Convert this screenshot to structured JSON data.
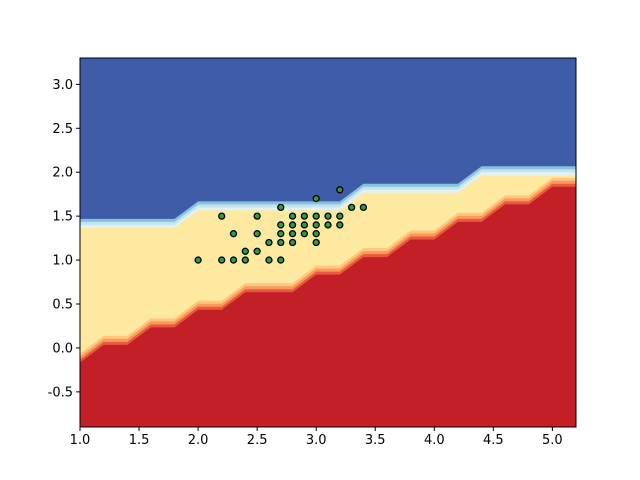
{
  "chart_data": {
    "type": "scatter",
    "background": "decision_regions_contour",
    "xlim": [
      1.0,
      5.2
    ],
    "ylim": [
      -0.9,
      3.3
    ],
    "x_ticks": [
      "1.0",
      "1.5",
      "2.0",
      "2.5",
      "3.0",
      "3.5",
      "4.0",
      "4.5",
      "5.0"
    ],
    "y_ticks": [
      "-0.5",
      "0.0",
      "0.5",
      "1.0",
      "1.5",
      "2.0",
      "2.5",
      "3.0"
    ],
    "colors": {
      "upper_region": "#3e5ca7",
      "middle_region": "#fde99f",
      "lower_region": "#c31f27",
      "upper_transition": [
        "#87c2dd",
        "#c4e3ef",
        "#e2f2f4"
      ],
      "lower_transition": [
        "#fec67e",
        "#f99a59",
        "#e9593f"
      ],
      "point_fill": "#2e9d3a",
      "point_edge": "#000000"
    },
    "upper_boundary": [
      [
        1.0,
        1.4
      ],
      [
        1.8,
        1.4
      ],
      [
        2.0,
        1.6
      ],
      [
        3.2,
        1.6
      ],
      [
        3.4,
        1.8
      ],
      [
        4.2,
        1.8
      ],
      [
        4.4,
        2.0
      ],
      [
        5.2,
        2.0
      ]
    ],
    "lower_boundary": [
      [
        1.0,
        -0.2
      ],
      [
        1.2,
        0.0
      ],
      [
        1.4,
        0.0
      ],
      [
        1.6,
        0.2
      ],
      [
        1.8,
        0.2
      ],
      [
        2.0,
        0.4
      ],
      [
        2.2,
        0.4
      ],
      [
        2.4,
        0.6
      ],
      [
        2.8,
        0.6
      ],
      [
        3.0,
        0.8
      ],
      [
        3.2,
        0.8
      ],
      [
        3.4,
        1.0
      ],
      [
        3.6,
        1.0
      ],
      [
        3.8,
        1.2
      ],
      [
        4.0,
        1.2
      ],
      [
        4.2,
        1.4
      ],
      [
        4.4,
        1.4
      ],
      [
        4.6,
        1.6
      ],
      [
        4.8,
        1.6
      ],
      [
        5.0,
        1.8
      ],
      [
        5.2,
        1.8
      ]
    ],
    "points": [
      [
        2.0,
        1.0
      ],
      [
        2.2,
        1.0
      ],
      [
        2.2,
        1.5
      ],
      [
        2.3,
        1.0
      ],
      [
        2.3,
        1.3
      ],
      [
        2.4,
        1.0
      ],
      [
        2.4,
        1.1
      ],
      [
        2.5,
        1.1
      ],
      [
        2.5,
        1.3
      ],
      [
        2.5,
        1.5
      ],
      [
        2.6,
        1.0
      ],
      [
        2.6,
        1.2
      ],
      [
        2.7,
        1.0
      ],
      [
        2.7,
        1.2
      ],
      [
        2.7,
        1.3
      ],
      [
        2.7,
        1.4
      ],
      [
        2.7,
        1.6
      ],
      [
        2.8,
        1.2
      ],
      [
        2.8,
        1.3
      ],
      [
        2.8,
        1.4
      ],
      [
        2.8,
        1.5
      ],
      [
        2.9,
        1.3
      ],
      [
        2.9,
        1.4
      ],
      [
        2.9,
        1.5
      ],
      [
        3.0,
        1.2
      ],
      [
        3.0,
        1.3
      ],
      [
        3.0,
        1.4
      ],
      [
        3.0,
        1.5
      ],
      [
        3.0,
        1.7
      ],
      [
        3.1,
        1.4
      ],
      [
        3.1,
        1.5
      ],
      [
        3.2,
        1.4
      ],
      [
        3.2,
        1.5
      ],
      [
        3.2,
        1.8
      ],
      [
        3.3,
        1.6
      ],
      [
        3.4,
        1.6
      ]
    ]
  }
}
